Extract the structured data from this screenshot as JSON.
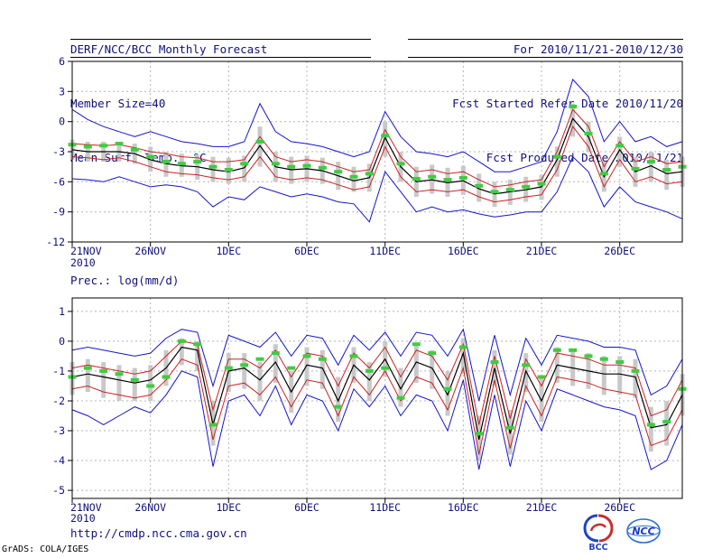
{
  "header": {
    "title": "DERF/NCC/BCC Monthly Forecast",
    "member_size": "Member Size=40",
    "temp_label": "Mean Surf. Temp.: °C",
    "for_range": "For 2010/11/21-2010/12/30",
    "refer_date": "Fcst Started Refer Date 2010/11/20",
    "produced_date": "Fcst Produced Date 2010/11/21"
  },
  "prec_label": "Prec.: log(mm/d)",
  "footer": {
    "url": "http://cmdp.ncc.cma.gov.cn",
    "grads_credit": "GrADS: COLA/IGES",
    "bcc_label": "BCC",
    "ncc_label": "NCC"
  },
  "colors": {
    "text": "#10107a",
    "frame": "#000000",
    "grid": "#b4b4b4",
    "spread_bar": "#c9c9c9",
    "max_min": "#1414cc",
    "quartile": "#cc2222",
    "median": "#000000",
    "ensemble_mean": "#3fcc3f"
  },
  "chart_data": [
    {
      "type": "line",
      "title": "Mean Surf. Temp.: °C",
      "ylabel": "",
      "xlabel": "",
      "ylim": [
        -12,
        6
      ],
      "y_ticks": [
        6,
        3,
        0,
        -3,
        -6,
        -9,
        -12
      ],
      "x_tick_days": [
        0,
        5,
        10,
        15,
        20,
        25,
        30,
        35
      ],
      "x_tick_labels": [
        "21NOV",
        "26NOV",
        "1DEC",
        "6DEC",
        "11DEC",
        "16DEC",
        "21DEC",
        "26DEC"
      ],
      "x_sub_label": "2010",
      "grid": "dotted",
      "series": [
        {
          "name": "max",
          "color": "#1414cc",
          "style": "line",
          "width": 1,
          "values": [
            1.2,
            0.2,
            -0.5,
            -1.0,
            -1.5,
            -1.0,
            -1.5,
            -2.0,
            -2.2,
            -2.5,
            -2.5,
            -2.0,
            1.8,
            -1.0,
            -2.0,
            -2.2,
            -2.5,
            -3.0,
            -3.5,
            -3.0,
            1.0,
            -1.5,
            -3.0,
            -3.2,
            -3.5,
            -3.0,
            -4.0,
            -5.0,
            -5.0,
            -4.5,
            -4.0,
            -1.0,
            4.2,
            2.5,
            -2.0,
            0.0,
            -2.0,
            -1.5,
            -2.5,
            -2.0
          ]
        },
        {
          "name": "min",
          "color": "#1414cc",
          "style": "line",
          "width": 1,
          "values": [
            -5.7,
            -5.8,
            -6.0,
            -5.5,
            -6.0,
            -6.5,
            -6.3,
            -6.5,
            -7.0,
            -8.5,
            -7.5,
            -7.8,
            -6.5,
            -7.0,
            -7.5,
            -7.2,
            -7.5,
            -8.0,
            -8.2,
            -10.0,
            -5.0,
            -7.0,
            -9.0,
            -8.5,
            -9.0,
            -8.8,
            -9.2,
            -9.5,
            -9.3,
            -9.0,
            -9.0,
            -7.0,
            -3.5,
            -5.0,
            -8.5,
            -6.5,
            -8.0,
            -8.5,
            -9.0,
            -9.7
          ]
        },
        {
          "name": "upper-quartile",
          "color": "#cc2222",
          "style": "line",
          "width": 1,
          "values": [
            -2.2,
            -2.3,
            -2.4,
            -2.3,
            -2.6,
            -3.0,
            -3.2,
            -3.5,
            -3.6,
            -4.0,
            -4.0,
            -3.8,
            -1.5,
            -3.5,
            -4.0,
            -3.8,
            -4.0,
            -4.5,
            -5.0,
            -4.8,
            -0.8,
            -3.5,
            -5.0,
            -4.8,
            -5.2,
            -5.0,
            -5.8,
            -6.5,
            -6.3,
            -6.0,
            -5.8,
            -3.0,
            1.2,
            -0.5,
            -4.5,
            -2.0,
            -4.0,
            -3.5,
            -4.2,
            -4.0
          ]
        },
        {
          "name": "lower-quartile",
          "color": "#cc2222",
          "style": "line",
          "width": 1,
          "values": [
            -3.5,
            -3.6,
            -3.8,
            -3.6,
            -4.0,
            -4.5,
            -5.0,
            -5.2,
            -5.3,
            -5.6,
            -5.8,
            -5.5,
            -3.5,
            -5.5,
            -5.8,
            -5.6,
            -5.8,
            -6.3,
            -6.8,
            -6.5,
            -2.5,
            -5.5,
            -7.0,
            -6.8,
            -7.0,
            -6.8,
            -7.5,
            -8.0,
            -7.8,
            -7.5,
            -7.3,
            -4.8,
            -0.5,
            -2.5,
            -6.5,
            -3.8,
            -6.0,
            -5.5,
            -6.2,
            -6.0
          ]
        },
        {
          "name": "median",
          "color": "#000000",
          "style": "line",
          "width": 1.2,
          "values": [
            -2.8,
            -3.0,
            -3.0,
            -3.0,
            -3.2,
            -3.8,
            -4.2,
            -4.4,
            -4.5,
            -4.8,
            -5.0,
            -4.6,
            -2.4,
            -4.5,
            -4.8,
            -4.7,
            -4.9,
            -5.4,
            -5.9,
            -5.6,
            -1.6,
            -4.5,
            -6.0,
            -5.8,
            -6.1,
            -5.9,
            -6.7,
            -7.2,
            -7.0,
            -6.8,
            -6.5,
            -3.8,
            0.3,
            -1.5,
            -5.5,
            -2.8,
            -5.0,
            -4.4,
            -5.2,
            -5.0
          ]
        },
        {
          "name": "ensemble-mean",
          "color": "#3fcc3f",
          "style": "dash-marks",
          "width": 4,
          "values": [
            -2.3,
            -2.5,
            -2.4,
            -2.2,
            -2.8,
            -3.5,
            -4.0,
            -4.2,
            -4.0,
            -4.5,
            -4.8,
            -4.2,
            -2.0,
            -4.2,
            -4.5,
            -4.4,
            -4.6,
            -5.0,
            -5.5,
            -5.2,
            -1.4,
            -4.2,
            -5.7,
            -5.5,
            -5.8,
            -5.6,
            -6.4,
            -7.0,
            -6.8,
            -6.5,
            -6.2,
            -3.5,
            1.5,
            -1.2,
            -5.2,
            -2.4,
            -4.7,
            -4.0,
            -4.8,
            -4.5
          ]
        }
      ],
      "spread_bars": {
        "low": [
          -3.8,
          -4.0,
          -4.0,
          -4.0,
          -4.2,
          -5.0,
          -5.5,
          -5.5,
          -5.8,
          -6.0,
          -6.2,
          -6.0,
          -4.5,
          -6.0,
          -6.2,
          -6.0,
          -6.2,
          -6.8,
          -7.0,
          -7.0,
          -3.5,
          -6.0,
          -7.5,
          -7.2,
          -7.5,
          -7.3,
          -8.0,
          -8.5,
          -8.3,
          -8.0,
          -7.8,
          -5.5,
          -1.5,
          -3.0,
          -7.0,
          -4.5,
          -6.5,
          -6.0,
          -6.8,
          -6.5
        ],
        "high": [
          -1.8,
          -2.0,
          -2.0,
          -2.0,
          -2.2,
          -2.5,
          -3.0,
          -3.2,
          -3.3,
          -3.5,
          -3.6,
          -3.4,
          -0.5,
          -3.0,
          -3.5,
          -3.4,
          -3.6,
          -4.0,
          -4.5,
          -4.2,
          0.0,
          -3.0,
          -4.5,
          -4.3,
          -4.6,
          -4.4,
          -5.2,
          -6.0,
          -5.8,
          -5.5,
          -5.3,
          -2.5,
          1.8,
          0.0,
          -4.0,
          -1.5,
          -3.5,
          -3.0,
          -3.8,
          -3.5
        ]
      }
    },
    {
      "type": "line",
      "title": "Prec.: log(mm/d)",
      "ylabel": "",
      "xlabel": "",
      "ylim": [
        -5.27,
        1.45
      ],
      "y_ticks": [
        1,
        0,
        -1,
        -2,
        -3,
        -4,
        -5
      ],
      "x_tick_days": [
        0,
        5,
        10,
        15,
        20,
        25,
        30,
        35
      ],
      "x_tick_labels": [
        "21NOV",
        "26NOV",
        "1DEC",
        "6DEC",
        "11DEC",
        "16DEC",
        "21DEC",
        "26DEC"
      ],
      "x_sub_label": "2010",
      "grid": "dotted",
      "series": [
        {
          "name": "max",
          "color": "#1414cc",
          "style": "line",
          "width": 1,
          "values": [
            -0.3,
            -0.2,
            -0.3,
            -0.4,
            -0.5,
            -0.4,
            0.1,
            0.4,
            0.3,
            -1.5,
            0.2,
            0.0,
            -0.2,
            0.3,
            -0.5,
            0.2,
            0.1,
            -0.8,
            0.2,
            -0.3,
            0.3,
            -0.5,
            0.3,
            0.2,
            -0.5,
            0.4,
            -2.0,
            0.2,
            -1.8,
            0.1,
            -0.8,
            0.2,
            0.1,
            0.0,
            -0.2,
            -0.2,
            -0.3,
            -1.8,
            -1.5,
            -0.6
          ]
        },
        {
          "name": "min",
          "color": "#1414cc",
          "style": "line",
          "width": 1,
          "values": [
            -2.3,
            -2.5,
            -2.8,
            -2.5,
            -2.2,
            -2.4,
            -1.8,
            -1.0,
            -1.2,
            -4.2,
            -2.0,
            -1.8,
            -2.5,
            -1.5,
            -2.8,
            -1.8,
            -2.0,
            -3.0,
            -1.6,
            -2.2,
            -1.5,
            -2.5,
            -1.8,
            -2.0,
            -3.0,
            -1.3,
            -4.3,
            -1.8,
            -4.2,
            -2.0,
            -3.0,
            -1.6,
            -1.8,
            -2.0,
            -2.2,
            -2.3,
            -2.5,
            -4.3,
            -4.0,
            -2.8
          ]
        },
        {
          "name": "upper-quartile",
          "color": "#cc2222",
          "style": "line",
          "width": 1,
          "values": [
            -0.9,
            -0.8,
            -0.9,
            -1.0,
            -1.1,
            -1.0,
            -0.5,
            0.0,
            -0.1,
            -2.3,
            -0.6,
            -0.6,
            -0.9,
            -0.3,
            -1.2,
            -0.4,
            -0.5,
            -1.5,
            -0.4,
            -0.9,
            -0.2,
            -1.2,
            -0.3,
            -0.5,
            -1.3,
            -0.1,
            -2.8,
            -0.5,
            -2.6,
            -0.6,
            -1.5,
            -0.4,
            -0.5,
            -0.6,
            -0.8,
            -0.8,
            -0.9,
            -2.5,
            -2.3,
            -1.3
          ]
        },
        {
          "name": "lower-quartile",
          "color": "#cc2222",
          "style": "line",
          "width": 1,
          "values": [
            -1.6,
            -1.5,
            -1.7,
            -1.8,
            -1.9,
            -1.8,
            -1.3,
            -0.6,
            -0.8,
            -3.3,
            -1.5,
            -1.4,
            -1.8,
            -1.2,
            -2.2,
            -1.3,
            -1.4,
            -2.5,
            -1.2,
            -1.8,
            -1.0,
            -2.0,
            -1.2,
            -1.4,
            -2.3,
            -0.9,
            -3.8,
            -1.3,
            -3.6,
            -1.5,
            -2.5,
            -1.2,
            -1.3,
            -1.4,
            -1.6,
            -1.7,
            -1.8,
            -3.5,
            -3.3,
            -2.3
          ]
        },
        {
          "name": "median",
          "color": "#000000",
          "style": "line",
          "width": 1.2,
          "values": [
            -1.2,
            -1.1,
            -1.2,
            -1.3,
            -1.4,
            -1.3,
            -0.9,
            -0.2,
            -0.3,
            -2.8,
            -1.0,
            -0.9,
            -1.3,
            -0.7,
            -1.7,
            -0.8,
            -0.9,
            -2.0,
            -0.8,
            -1.3,
            -0.6,
            -1.6,
            -0.7,
            -0.9,
            -1.8,
            -0.4,
            -3.3,
            -0.9,
            -3.1,
            -1.0,
            -2.0,
            -0.8,
            -0.9,
            -1.0,
            -1.1,
            -1.1,
            -1.2,
            -2.9,
            -2.8,
            -1.8
          ]
        },
        {
          "name": "ensemble-mean",
          "color": "#3fcc3f",
          "style": "dash-marks",
          "width": 4,
          "values": [
            -1.2,
            -0.9,
            -1.0,
            -1.1,
            -1.3,
            -1.5,
            -1.2,
            0.0,
            -0.1,
            -2.8,
            -0.9,
            -0.8,
            -0.6,
            -0.4,
            -0.9,
            -0.5,
            -0.6,
            -2.2,
            -0.5,
            -1.0,
            -0.9,
            -1.9,
            -0.1,
            -0.4,
            -1.6,
            -0.2,
            -3.1,
            -0.7,
            -2.9,
            -0.8,
            -1.2,
            -0.3,
            -0.3,
            -0.5,
            -0.6,
            -0.7,
            -1.0,
            -2.8,
            -2.7,
            -1.6
          ]
        }
      ],
      "spread_bars": {
        "low": [
          -1.8,
          -1.7,
          -1.9,
          -2.0,
          -2.0,
          -2.0,
          -1.5,
          -0.8,
          -1.0,
          -3.5,
          -1.7,
          -1.6,
          -2.0,
          -1.4,
          -2.4,
          -1.5,
          -1.6,
          -2.7,
          -1.4,
          -2.0,
          -1.2,
          -2.2,
          -1.4,
          -1.6,
          -2.5,
          -1.1,
          -4.0,
          -1.5,
          -3.8,
          -1.7,
          -2.7,
          -1.4,
          -1.5,
          -1.6,
          -1.8,
          -1.8,
          -1.9,
          -3.7,
          -3.5,
          -2.5
        ],
        "high": [
          -0.7,
          -0.6,
          -0.7,
          -0.8,
          -0.9,
          -0.8,
          -0.3,
          0.1,
          0.0,
          -2.0,
          -0.4,
          -0.4,
          -0.7,
          -0.1,
          -1.0,
          -0.2,
          -0.3,
          -1.2,
          -0.2,
          -0.7,
          0.0,
          -0.9,
          -0.1,
          -0.3,
          -1.0,
          0.1,
          -2.5,
          -0.3,
          -2.3,
          -0.4,
          -1.2,
          -0.2,
          -0.3,
          -0.4,
          -0.5,
          -0.5,
          -0.6,
          -2.2,
          -2.0,
          -1.1
        ]
      }
    }
  ]
}
